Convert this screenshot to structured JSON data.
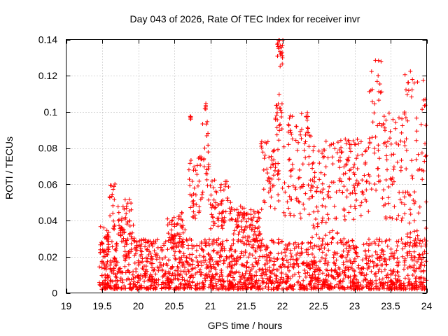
{
  "chart_data": {
    "type": "scatter",
    "title": "Day 043 of 2026, Rate Of TEC Index for receiver invr",
    "xlabel": "GPS time / hours",
    "ylabel": "ROTI / TECUs",
    "xlim": [
      19,
      24
    ],
    "ylim": [
      0,
      0.14
    ],
    "x_ticks": [
      19,
      19.5,
      20,
      20.5,
      21,
      21.5,
      22,
      22.5,
      23,
      23.5,
      24
    ],
    "x_tick_labels": [
      "19",
      "19.5",
      "20",
      "20.5",
      "21",
      "21.5",
      "22",
      "22.5",
      "23",
      "23.5",
      "24"
    ],
    "y_ticks": [
      0,
      0.02,
      0.04,
      0.06,
      0.08,
      0.1,
      0.12,
      0.14
    ],
    "y_tick_labels": [
      "0",
      "0.02",
      "0.04",
      "0.06",
      "0.08",
      "0.1",
      "0.12",
      "0.14"
    ],
    "grid": true,
    "marker": "+",
    "series_color": "#ff0000",
    "series": [
      {
        "name": "ROTI",
        "x_start": 19.46,
        "x_end": 24.0,
        "baseline_points": 1800,
        "baseline_range": [
          0.002,
          0.03
        ],
        "features": [
          {
            "x": [
              19.47,
              19.6
            ],
            "y": [
              0.02,
              0.038
            ]
          },
          {
            "x": [
              19.6,
              19.68
            ],
            "y": [
              0.035,
              0.061
            ]
          },
          {
            "x": [
              19.72,
              19.95
            ],
            "y": [
              0.028,
              0.052
            ]
          },
          {
            "x": [
              20.4,
              20.65
            ],
            "y": [
              0.025,
              0.045
            ]
          },
          {
            "x": [
              20.7,
              20.85
            ],
            "y": [
              0.04,
              0.075
            ]
          },
          {
            "x": [
              20.72,
              20.73
            ],
            "y": [
              0.096,
              0.098
            ]
          },
          {
            "x": [
              20.85,
              20.98
            ],
            "y": [
              0.05,
              0.095
            ]
          },
          {
            "x": [
              20.92,
              20.94
            ],
            "y": [
              0.1,
              0.106
            ]
          },
          {
            "x": [
              21.0,
              21.3
            ],
            "y": [
              0.035,
              0.063
            ]
          },
          {
            "x": [
              21.3,
              21.7
            ],
            "y": [
              0.028,
              0.048
            ]
          },
          {
            "x": [
              21.7,
              21.95
            ],
            "y": [
              0.045,
              0.085
            ]
          },
          {
            "x": [
              21.9,
              22.0
            ],
            "y": [
              0.085,
              0.11
            ]
          },
          {
            "x": [
              21.93,
              22.02
            ],
            "y": [
              0.125,
              0.14
            ]
          },
          {
            "x": [
              22.0,
              22.4
            ],
            "y": [
              0.04,
              0.1
            ]
          },
          {
            "x": [
              22.4,
              22.8
            ],
            "y": [
              0.03,
              0.085
            ]
          },
          {
            "x": [
              22.8,
              23.2
            ],
            "y": [
              0.04,
              0.085
            ]
          },
          {
            "x": [
              23.2,
              23.4
            ],
            "y": [
              0.05,
              0.13
            ]
          },
          {
            "x": [
              23.4,
              23.7
            ],
            "y": [
              0.04,
              0.1
            ]
          },
          {
            "x": [
              23.7,
              24.0
            ],
            "y": [
              0.03,
              0.123
            ]
          }
        ]
      }
    ]
  }
}
